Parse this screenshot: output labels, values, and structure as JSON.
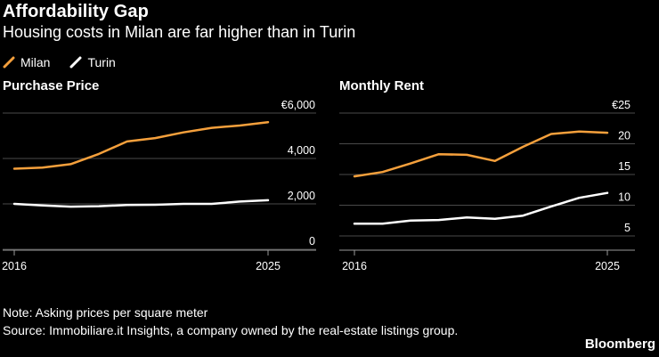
{
  "title": "Affordability Gap",
  "subtitle": "Housing costs in Milan are far higher than in Turin",
  "legend": [
    {
      "name": "Milan",
      "color": "#f5a03c"
    },
    {
      "name": "Turin",
      "color": "#ffffff"
    }
  ],
  "note": "Note: Asking prices per square meter",
  "source": "Source: Immobiliare.it Insights, a company owned by the real-estate listings group.",
  "brand": "Bloomberg",
  "chart_data": [
    {
      "type": "line",
      "title": "Purchase Price",
      "x": [
        2016,
        2017,
        2018,
        2019,
        2020,
        2021,
        2022,
        2023,
        2024,
        2025
      ],
      "xticks": [
        2016,
        2025
      ],
      "ylim": [
        0,
        6000
      ],
      "yticks": [
        0,
        2000,
        4000,
        6000
      ],
      "ytick_labels": [
        "0",
        "2,000",
        "4,000",
        "€6,000"
      ],
      "grid": true,
      "series": [
        {
          "name": "Milan",
          "color": "#f5a03c",
          "values": [
            3550,
            3600,
            3750,
            4200,
            4750,
            4900,
            5150,
            5350,
            5450,
            5600
          ]
        },
        {
          "name": "Turin",
          "color": "#ffffff",
          "values": [
            2000,
            1930,
            1880,
            1900,
            1950,
            1960,
            2000,
            2000,
            2100,
            2160
          ]
        }
      ]
    },
    {
      "type": "line",
      "title": "Monthly Rent",
      "x": [
        2016,
        2017,
        2018,
        2019,
        2020,
        2021,
        2022,
        2023,
        2024,
        2025
      ],
      "xticks": [
        2016,
        2025
      ],
      "ylim": [
        3,
        25
      ],
      "yticks": [
        5,
        10,
        15,
        20,
        25
      ],
      "ytick_labels": [
        "5",
        "10",
        "15",
        "20",
        "€25"
      ],
      "grid": true,
      "series": [
        {
          "name": "Milan",
          "color": "#f5a03c",
          "values": [
            14.7,
            15.4,
            16.8,
            18.3,
            18.2,
            17.2,
            19.5,
            21.6,
            22.0,
            21.8
          ]
        },
        {
          "name": "Turin",
          "color": "#ffffff",
          "values": [
            7.0,
            7.0,
            7.5,
            7.6,
            8.0,
            7.8,
            8.3,
            9.8,
            11.2,
            12.0
          ]
        }
      ]
    }
  ]
}
